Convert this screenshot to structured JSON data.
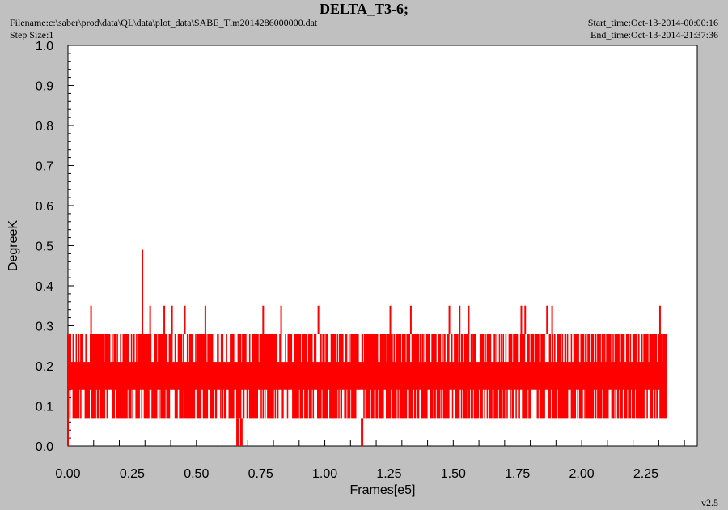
{
  "header": {
    "title": "DELTA_T3-6;",
    "filename": "Filename:c:\\saber\\prod\\data\\QL\\data\\plot_data\\SABE_Tlm2014286000000.dat",
    "step_size": "Step Size:1",
    "start_time": "Start_time:Oct-13-2014-00:00:16",
    "end_time": "End_time:Oct-13-2014-21:37:36",
    "version": "v2.5"
  },
  "colors": {
    "series": "#ff0000",
    "plot_bg": "#ffffff",
    "page_bg": "#c0c0c0"
  },
  "chart_data": {
    "type": "line",
    "xlabel": "Frames[e5]",
    "ylabel": "DegreeK",
    "xlim": [
      0.0,
      2.45
    ],
    "ylim": [
      0.0,
      1.0
    ],
    "x_ticks": [
      "0.00",
      "0.25",
      "0.50",
      "0.75",
      "1.00",
      "1.25",
      "1.50",
      "1.75",
      "2.00",
      "2.25"
    ],
    "y_ticks": [
      "0.0",
      "0.1",
      "0.2",
      "0.3",
      "0.4",
      "0.5",
      "0.6",
      "0.7",
      "0.8",
      "0.9",
      "1.0"
    ],
    "grid": false,
    "series": [
      {
        "color": "#ff0000",
        "x_range": [
          0.0,
          2.33
        ],
        "band_low": 0.07,
        "band_high": 0.28,
        "typical_levels": [
          0.07,
          0.14,
          0.21,
          0.28
        ],
        "spikes": [
          {
            "x": 0.09,
            "y": 0.35
          },
          {
            "x": 0.29,
            "y": 0.49
          },
          {
            "x": 0.32,
            "y": 0.35
          },
          {
            "x": 0.375,
            "y": 0.35
          },
          {
            "x": 0.405,
            "y": 0.35
          },
          {
            "x": 0.455,
            "y": 0.35
          },
          {
            "x": 0.535,
            "y": 0.35
          },
          {
            "x": 0.76,
            "y": 0.35
          },
          {
            "x": 0.83,
            "y": 0.35
          },
          {
            "x": 0.975,
            "y": 0.35
          },
          {
            "x": 1.255,
            "y": 0.35
          },
          {
            "x": 1.335,
            "y": 0.35
          },
          {
            "x": 1.485,
            "y": 0.35
          },
          {
            "x": 1.525,
            "y": 0.35
          },
          {
            "x": 1.56,
            "y": 0.35
          },
          {
            "x": 1.765,
            "y": 0.35
          },
          {
            "x": 1.78,
            "y": 0.35
          },
          {
            "x": 1.865,
            "y": 0.35
          },
          {
            "x": 1.885,
            "y": 0.35
          },
          {
            "x": 2.305,
            "y": 0.35
          }
        ],
        "dips": [
          {
            "x": 0.66,
            "y": 0.0
          },
          {
            "x": 0.675,
            "y": 0.0
          },
          {
            "x": 1.145,
            "y": 0.0
          }
        ]
      }
    ]
  }
}
